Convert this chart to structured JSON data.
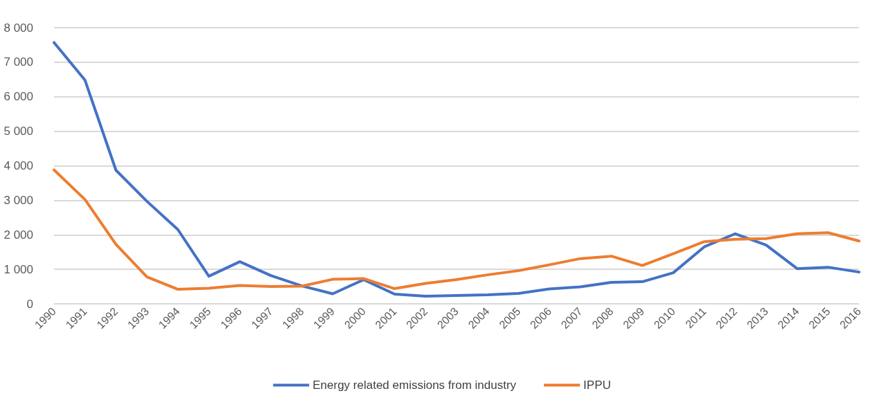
{
  "chart_data": {
    "type": "line",
    "categories": [
      "1990",
      "1991",
      "1992",
      "1993",
      "1994",
      "1995",
      "1996",
      "1997",
      "1998",
      "1999",
      "2000",
      "2001",
      "2002",
      "2003",
      "2004",
      "2005",
      "2006",
      "2007",
      "2008",
      "2009",
      "2010",
      "2011",
      "2012",
      "2013",
      "2014",
      "2015",
      "2016"
    ],
    "series": [
      {
        "name": "Energy related emissions from industry",
        "color": "#4472c4",
        "values": [
          7570,
          6480,
          3870,
          2970,
          2150,
          800,
          1220,
          820,
          520,
          290,
          700,
          280,
          220,
          240,
          260,
          300,
          430,
          490,
          620,
          640,
          900,
          1650,
          2030,
          1700,
          1020,
          1060,
          920
        ]
      },
      {
        "name": "IPPU",
        "color": "#ed7d31",
        "values": [
          3880,
          3020,
          1720,
          780,
          420,
          450,
          530,
          500,
          510,
          710,
          730,
          440,
          590,
          700,
          840,
          960,
          1130,
          1310,
          1380,
          1110,
          1450,
          1800,
          1870,
          1890,
          2030,
          2060,
          1820
        ]
      }
    ],
    "ylim": [
      0,
      8000
    ],
    "yticks": [
      0,
      {
        "value": 1000,
        "label": "1 000"
      },
      {
        "value": 2000,
        "label": "2 000"
      },
      {
        "value": 3000,
        "label": "3 000"
      },
      {
        "value": 4000,
        "label": "4 000"
      },
      {
        "value": 5000,
        "label": "5 000"
      },
      {
        "value": 6000,
        "label": "6 000"
      },
      {
        "value": 7000,
        "label": "7 000"
      },
      {
        "value": 8000,
        "label": "8 000"
      }
    ],
    "grid": "y",
    "legend": "bottom",
    "marker": "none",
    "line_style": "solid"
  }
}
